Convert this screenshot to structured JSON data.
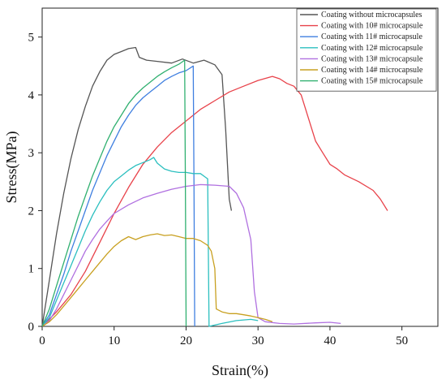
{
  "chart_data": {
    "type": "line",
    "xlabel": "Strain(%)",
    "ylabel": "Stress(MPa)",
    "xlim": [
      0,
      55
    ],
    "ylim": [
      0,
      5.5
    ],
    "x_ticks": [
      0,
      10,
      20,
      30,
      40,
      50
    ],
    "y_ticks": [
      0,
      1,
      2,
      3,
      4,
      5
    ],
    "grid": false,
    "legend_position": "top-right",
    "series": [
      {
        "name": "Coating without microcapsules",
        "color": "#555555",
        "points": [
          [
            0,
            0
          ],
          [
            1,
            0.8
          ],
          [
            2,
            1.6
          ],
          [
            3,
            2.3
          ],
          [
            4,
            2.9
          ],
          [
            5,
            3.4
          ],
          [
            6,
            3.8
          ],
          [
            7,
            4.15
          ],
          [
            8,
            4.4
          ],
          [
            9,
            4.6
          ],
          [
            10,
            4.7
          ],
          [
            11,
            4.75
          ],
          [
            12,
            4.8
          ],
          [
            13,
            4.82
          ],
          [
            13.5,
            4.65
          ],
          [
            14.5,
            4.6
          ],
          [
            16,
            4.58
          ],
          [
            18,
            4.55
          ],
          [
            19.5,
            4.62
          ],
          [
            21,
            4.55
          ],
          [
            22.5,
            4.6
          ],
          [
            24,
            4.52
          ],
          [
            25,
            4.35
          ],
          [
            25.5,
            3.4
          ],
          [
            26,
            2.2
          ],
          [
            26.3,
            2.0
          ]
        ]
      },
      {
        "name": "Coating with 10# microcapsule",
        "color": "#e8424a",
        "points": [
          [
            0,
            0
          ],
          [
            2,
            0.25
          ],
          [
            4,
            0.55
          ],
          [
            6,
            0.95
          ],
          [
            8,
            1.45
          ],
          [
            10,
            1.95
          ],
          [
            12,
            2.4
          ],
          [
            14,
            2.8
          ],
          [
            16,
            3.1
          ],
          [
            18,
            3.35
          ],
          [
            20,
            3.55
          ],
          [
            22,
            3.75
          ],
          [
            24,
            3.9
          ],
          [
            26,
            4.05
          ],
          [
            28,
            4.15
          ],
          [
            30,
            4.25
          ],
          [
            32,
            4.32
          ],
          [
            33,
            4.28
          ],
          [
            34,
            4.2
          ],
          [
            35,
            4.15
          ],
          [
            36,
            4.0
          ],
          [
            37,
            3.6
          ],
          [
            38,
            3.2
          ],
          [
            39,
            3.0
          ],
          [
            40,
            2.8
          ],
          [
            41,
            2.72
          ],
          [
            42,
            2.62
          ],
          [
            44,
            2.5
          ],
          [
            46,
            2.35
          ],
          [
            47,
            2.2
          ],
          [
            48,
            2.0
          ]
        ]
      },
      {
        "name": "Coating with 11# microcapsule",
        "color": "#3f7fe0",
        "points": [
          [
            0,
            0
          ],
          [
            1,
            0.2
          ],
          [
            2,
            0.55
          ],
          [
            3,
            0.9
          ],
          [
            4,
            1.3
          ],
          [
            5,
            1.65
          ],
          [
            6,
            2.0
          ],
          [
            7,
            2.35
          ],
          [
            8,
            2.65
          ],
          [
            9,
            2.95
          ],
          [
            10,
            3.2
          ],
          [
            11,
            3.45
          ],
          [
            12,
            3.65
          ],
          [
            13,
            3.82
          ],
          [
            14,
            3.95
          ],
          [
            15,
            4.05
          ],
          [
            16,
            4.15
          ],
          [
            17,
            4.25
          ],
          [
            18,
            4.32
          ],
          [
            19,
            4.38
          ],
          [
            20,
            4.42
          ],
          [
            21,
            4.5
          ],
          [
            21.1,
            2.5
          ],
          [
            21.2,
            0
          ]
        ]
      },
      {
        "name": "Coating with 12# microcapsule",
        "color": "#2bbfbf",
        "points": [
          [
            0,
            0
          ],
          [
            1,
            0.15
          ],
          [
            2,
            0.45
          ],
          [
            3,
            0.75
          ],
          [
            4,
            1.05
          ],
          [
            5,
            1.35
          ],
          [
            6,
            1.65
          ],
          [
            7,
            1.92
          ],
          [
            8,
            2.15
          ],
          [
            9,
            2.35
          ],
          [
            10,
            2.5
          ],
          [
            11,
            2.6
          ],
          [
            12,
            2.7
          ],
          [
            13,
            2.78
          ],
          [
            14,
            2.83
          ],
          [
            15,
            2.88
          ],
          [
            15.5,
            2.92
          ],
          [
            16,
            2.82
          ],
          [
            17,
            2.72
          ],
          [
            18,
            2.68
          ],
          [
            19,
            2.66
          ],
          [
            20,
            2.66
          ],
          [
            21,
            2.64
          ],
          [
            22,
            2.64
          ],
          [
            23,
            2.55
          ],
          [
            23.1,
            1.2
          ],
          [
            23.2,
            0
          ],
          [
            25,
            0.05
          ],
          [
            27,
            0.1
          ],
          [
            29,
            0.12
          ],
          [
            30,
            0.1
          ]
        ]
      },
      {
        "name": "Coating with 13# microcapsule",
        "color": "#b070e0",
        "points": [
          [
            0,
            0
          ],
          [
            1,
            0.1
          ],
          [
            2,
            0.3
          ],
          [
            3,
            0.55
          ],
          [
            4,
            0.8
          ],
          [
            5,
            1.05
          ],
          [
            6,
            1.3
          ],
          [
            7,
            1.5
          ],
          [
            8,
            1.68
          ],
          [
            9,
            1.82
          ],
          [
            10,
            1.95
          ],
          [
            12,
            2.1
          ],
          [
            14,
            2.22
          ],
          [
            16,
            2.3
          ],
          [
            18,
            2.37
          ],
          [
            20,
            2.42
          ],
          [
            22,
            2.45
          ],
          [
            24,
            2.44
          ],
          [
            26,
            2.42
          ],
          [
            27,
            2.3
          ],
          [
            28,
            2.05
          ],
          [
            29,
            1.5
          ],
          [
            29.5,
            0.6
          ],
          [
            30,
            0.15
          ],
          [
            31,
            0.08
          ],
          [
            33,
            0.05
          ],
          [
            35,
            0.04
          ],
          [
            38,
            0.06
          ],
          [
            40,
            0.07
          ],
          [
            41.5,
            0.05
          ]
        ]
      },
      {
        "name": "Coating with 14# microcapsule",
        "color": "#c8a020",
        "points": [
          [
            0,
            0
          ],
          [
            1,
            0.08
          ],
          [
            2,
            0.2
          ],
          [
            3,
            0.35
          ],
          [
            4,
            0.5
          ],
          [
            5,
            0.65
          ],
          [
            6,
            0.8
          ],
          [
            7,
            0.95
          ],
          [
            8,
            1.1
          ],
          [
            9,
            1.25
          ],
          [
            10,
            1.38
          ],
          [
            11,
            1.48
          ],
          [
            12,
            1.55
          ],
          [
            13,
            1.5
          ],
          [
            14,
            1.55
          ],
          [
            15,
            1.58
          ],
          [
            16,
            1.6
          ],
          [
            17,
            1.57
          ],
          [
            18,
            1.58
          ],
          [
            19,
            1.55
          ],
          [
            20,
            1.52
          ],
          [
            21,
            1.52
          ],
          [
            22,
            1.48
          ],
          [
            23,
            1.4
          ],
          [
            23.5,
            1.3
          ],
          [
            24,
            1.0
          ],
          [
            24.2,
            0.3
          ],
          [
            25,
            0.25
          ],
          [
            26,
            0.22
          ],
          [
            27,
            0.22
          ],
          [
            28,
            0.2
          ],
          [
            29,
            0.18
          ],
          [
            30,
            0.15
          ],
          [
            31,
            0.12
          ],
          [
            32,
            0.08
          ]
        ]
      },
      {
        "name": "Coating with 15# microcapsule",
        "color": "#30b070",
        "points": [
          [
            0,
            0
          ],
          [
            1,
            0.3
          ],
          [
            2,
            0.7
          ],
          [
            3,
            1.1
          ],
          [
            4,
            1.5
          ],
          [
            5,
            1.9
          ],
          [
            6,
            2.25
          ],
          [
            7,
            2.6
          ],
          [
            8,
            2.9
          ],
          [
            9,
            3.2
          ],
          [
            10,
            3.45
          ],
          [
            11,
            3.65
          ],
          [
            12,
            3.85
          ],
          [
            13,
            4.0
          ],
          [
            14,
            4.12
          ],
          [
            15,
            4.22
          ],
          [
            16,
            4.32
          ],
          [
            17,
            4.4
          ],
          [
            18,
            4.47
          ],
          [
            19,
            4.53
          ],
          [
            19.8,
            4.6
          ],
          [
            19.9,
            2.5
          ],
          [
            20,
            0
          ]
        ]
      }
    ]
  }
}
